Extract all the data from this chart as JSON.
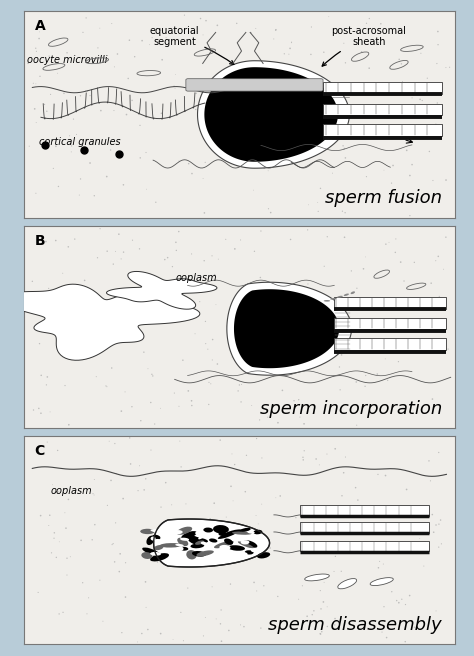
{
  "bg_color": "#b8ccd8",
  "panel_bg": "#f0eeea",
  "border_color": "#777777",
  "title_fontsize": 13,
  "label_fontsize": 7,
  "panel_label_fontsize": 10,
  "panels": [
    {
      "label": "A",
      "title": "sperm fusion",
      "annot1_text": "equatorial\nsegment",
      "annot2_text": "post-acrosomal\nsheath",
      "label1_text": "oocyte microvilli",
      "label2_text": "cortical granules"
    },
    {
      "label": "B",
      "title": "sperm incorporation",
      "label1_text": "ooplasm"
    },
    {
      "label": "C",
      "title": "sperm disassembly",
      "label1_text": "ooplasm"
    }
  ]
}
